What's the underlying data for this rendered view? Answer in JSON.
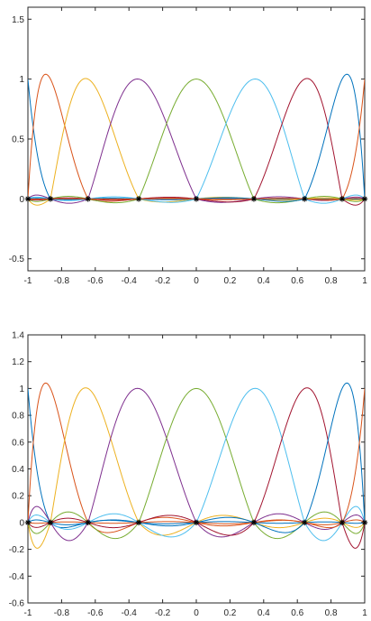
{
  "chart_data": [
    {
      "type": "line",
      "title": "",
      "xlabel": "",
      "ylabel": "",
      "xlim": [
        -1,
        1
      ],
      "ylim": [
        -0.6,
        1.6
      ],
      "xticks": [
        -1,
        -0.8,
        -0.6,
        -0.4,
        -0.2,
        0,
        0.2,
        0.4,
        0.6,
        0.8,
        1
      ],
      "xtick_labels": [
        "-1",
        "-0.8",
        "-0.6",
        "-0.4",
        "-0.2",
        "0",
        "0.2",
        "0.4",
        "0.6",
        "0.8",
        "1"
      ],
      "yticks": [
        -0.5,
        0,
        0.5,
        1,
        1.5
      ],
      "ytick_labels": [
        "-0.5",
        "0",
        "0.5",
        "1",
        "1.5"
      ],
      "grid": false,
      "legend": "none",
      "nodes": [
        -1,
        -0.866,
        -0.643,
        -0.342,
        0,
        0.342,
        0.643,
        0.866,
        1
      ],
      "node_values": [
        0,
        0,
        0,
        0,
        0,
        0,
        0,
        0,
        0
      ],
      "node_marker": "asterisk",
      "series_style": "cardinal-functions-peaking-at-each-node",
      "envelope": 0.07,
      "colors": [
        "#0072bd",
        "#d95319",
        "#edb120",
        "#7e2f8e",
        "#77ac30",
        "#4dbeee",
        "#a2142f",
        "#0072bd",
        "#d95319"
      ]
    },
    {
      "type": "line",
      "title": "",
      "xlabel": "",
      "ylabel": "",
      "xlim": [
        -1,
        1
      ],
      "ylim": [
        -0.6,
        1.4
      ],
      "xticks": [
        -1,
        -0.8,
        -0.6,
        -0.4,
        -0.2,
        0,
        0.2,
        0.4,
        0.6,
        0.8,
        1
      ],
      "xtick_labels": [
        "-1",
        "-0.8",
        "-0.6",
        "-0.4",
        "-0.2",
        "0",
        "0.2",
        "0.4",
        "0.6",
        "0.8",
        "1"
      ],
      "yticks": [
        -0.6,
        -0.4,
        -0.2,
        0,
        0.2,
        0.4,
        0.6,
        0.8,
        1,
        1.2,
        1.4
      ],
      "ytick_labels": [
        "-0.6",
        "-0.4",
        "-0.2",
        "0",
        "0.2",
        "0.4",
        "0.6",
        "0.8",
        "1",
        "1.2",
        "1.4"
      ],
      "grid": false,
      "legend": "none",
      "nodes": [
        -1,
        -0.866,
        -0.643,
        -0.342,
        0,
        0.342,
        0.643,
        0.866,
        1
      ],
      "node_values": [
        0,
        0,
        0,
        0,
        0,
        0,
        0,
        0,
        0
      ],
      "node_marker": "asterisk",
      "series_style": "cardinal-functions-peaking-at-each-node",
      "envelope": 0.26,
      "colors": [
        "#0072bd",
        "#d95319",
        "#edb120",
        "#7e2f8e",
        "#77ac30",
        "#4dbeee",
        "#a2142f",
        "#0072bd",
        "#d95319"
      ]
    }
  ]
}
